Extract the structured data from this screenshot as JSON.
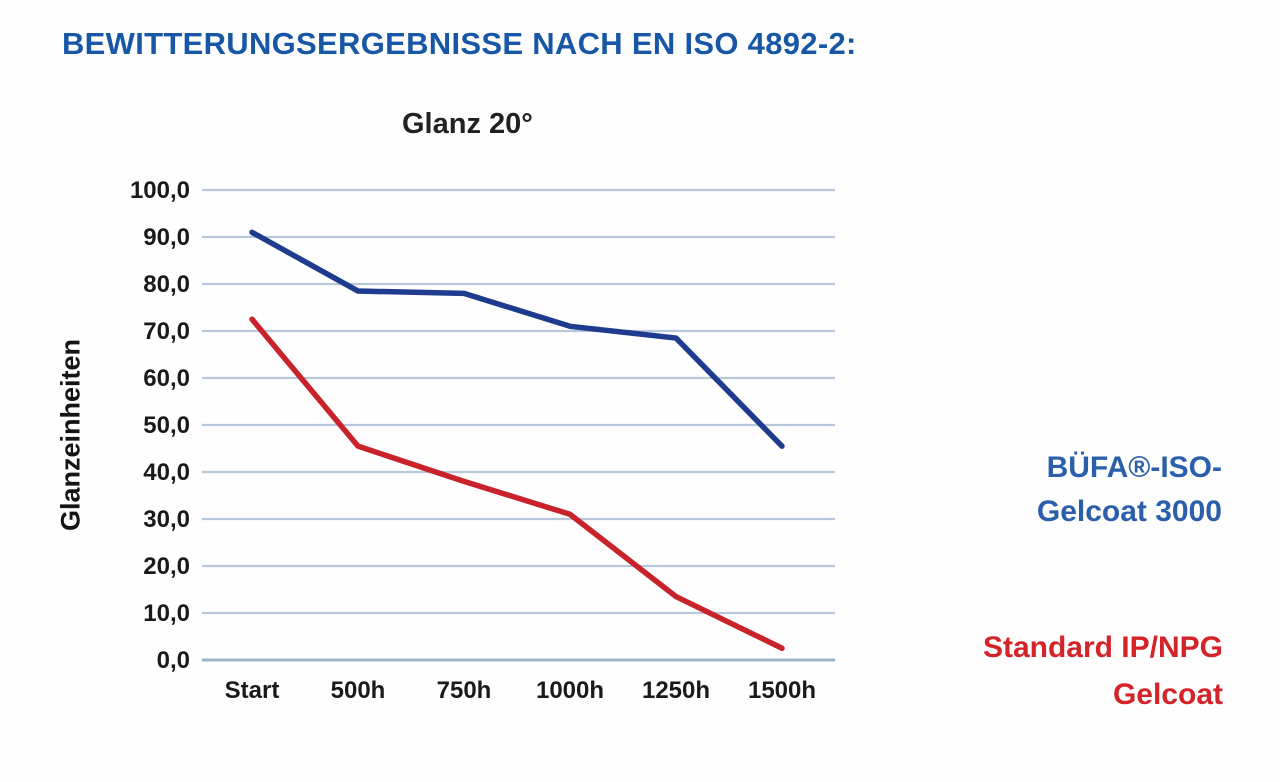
{
  "header": {
    "title": "BEWITTERUNGSERGEBNISSE NACH EN ISO 4892-2:",
    "color": "#1857a6"
  },
  "chart_data": {
    "type": "line",
    "title": "Glanz 20°",
    "ylabel": "Glanzeinheiten",
    "xlabel": "",
    "categories": [
      "Start",
      "500h",
      "750h",
      "1000h",
      "1250h",
      "1500h"
    ],
    "series": [
      {
        "name": "BÜFA®-ISO-Gelcoat 3000",
        "color": "#1e3b8d",
        "values": [
          91.0,
          78.5,
          78.0,
          71.0,
          68.5,
          45.5
        ]
      },
      {
        "name": "Standard IP/NPG Gelcoat",
        "color": "#c8232b",
        "values": [
          72.5,
          45.5,
          38.0,
          31.0,
          13.5,
          2.5
        ]
      }
    ],
    "ylim": [
      0,
      100
    ],
    "ytick_step": 10,
    "ytick_labels": [
      "0,0",
      "10,0",
      "20,0",
      "30,0",
      "40,0",
      "50,0",
      "60,0",
      "70,0",
      "80,0",
      "90,0",
      "100,0"
    ],
    "grid": true,
    "gridline_color": "#b6c8da",
    "axis_color": "#9fb4c6",
    "tick_text_color": "#1a1a1a",
    "legend_position": "right"
  },
  "legend": {
    "bufa": {
      "lines": [
        "BÜFA®-ISO-",
        "Gelcoat 3000"
      ],
      "color": "#2b5fab"
    },
    "standard": {
      "lines": [
        "Standard IP/NPG",
        "Gelcoat"
      ],
      "color": "#d42329"
    }
  }
}
